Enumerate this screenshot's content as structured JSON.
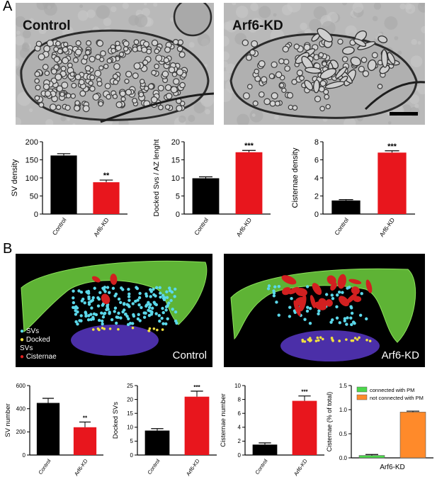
{
  "panel_letters": {
    "a": "A",
    "b": "B"
  },
  "micrographs": [
    {
      "label": "Control"
    },
    {
      "label": "Arf6-KD"
    }
  ],
  "reconstructions": [
    {
      "label": "Control"
    },
    {
      "label": "Arf6-KD"
    }
  ],
  "recon_legend": [
    {
      "label": "SVs",
      "color": "#5bd8ea"
    },
    {
      "label": "Docked SVs",
      "color": "#f0e040"
    },
    {
      "label": "Cisternae",
      "color": "#e02020"
    }
  ],
  "colors": {
    "control_bar": "#000000",
    "arf6kd_bar": "#e8161d",
    "connected_pm": "#4cd84c",
    "not_connected_pm": "#ff8a2a",
    "membrane_green": "#66c23a",
    "active_zone_purple": "#4b2fa8"
  },
  "chart_data": [
    {
      "type": "bar",
      "categories": [
        "Control",
        "Arf6-KD"
      ],
      "values": [
        162,
        88
      ],
      "errors": [
        5,
        6
      ],
      "ylabel": "SV density",
      "ylim": [
        0,
        200
      ],
      "yticks": [
        0,
        50,
        100,
        150,
        200
      ],
      "significance": [
        "",
        "**"
      ]
    },
    {
      "type": "bar",
      "categories": [
        "Control",
        "Arf6-KD"
      ],
      "values": [
        9.9,
        17.1
      ],
      "errors": [
        0.4,
        0.5
      ],
      "ylabel": "Docked Svs / AZ lenght",
      "ylim": [
        0,
        20
      ],
      "yticks": [
        0,
        5,
        10,
        15,
        20
      ],
      "significance": [
        "",
        "***"
      ]
    },
    {
      "type": "bar",
      "categories": [
        "Control",
        "Arf6-KD"
      ],
      "values": [
        1.5,
        6.8
      ],
      "errors": [
        0.1,
        0.2
      ],
      "ylabel": "Cisternae density",
      "ylim": [
        0,
        8
      ],
      "yticks": [
        0,
        2,
        4,
        6,
        8
      ],
      "significance": [
        "",
        "***"
      ]
    },
    {
      "type": "bar",
      "categories": [
        "Control",
        "Arf6-KD"
      ],
      "values": [
        450,
        240
      ],
      "errors": [
        40,
        45
      ],
      "ylabel": "SV number",
      "ylim": [
        0,
        600
      ],
      "yticks": [
        0,
        200,
        400,
        600
      ],
      "significance": [
        "",
        "**"
      ]
    },
    {
      "type": "bar",
      "categories": [
        "Control",
        "Arf6-KD"
      ],
      "values": [
        8.8,
        21
      ],
      "errors": [
        0.7,
        2
      ],
      "ylabel": "Docked SVs",
      "ylim": [
        0,
        25
      ],
      "yticks": [
        0,
        5,
        10,
        15,
        20,
        25
      ],
      "significance": [
        "",
        "***"
      ]
    },
    {
      "type": "bar",
      "categories": [
        "Control",
        "Arf6-KD"
      ],
      "values": [
        1.5,
        7.8
      ],
      "errors": [
        0.25,
        0.7
      ],
      "ylabel": "Cisternae number",
      "ylim": [
        0,
        10
      ],
      "yticks": [
        0,
        2,
        4,
        6,
        8,
        10
      ],
      "significance": [
        "",
        "***"
      ]
    },
    {
      "type": "bar",
      "categories": [
        "connected with PM",
        "not connected with PM"
      ],
      "values": [
        0.05,
        0.95
      ],
      "errors": [
        0.02,
        0.02
      ],
      "ylabel": "Cisternae (% of total)",
      "xlabel": "Arf6-KD",
      "ylim": [
        0,
        1.5
      ],
      "yticks": [
        "0.0",
        "0.5",
        "1.0",
        "1.5"
      ],
      "legend": [
        "connected with PM",
        "not connected with PM"
      ],
      "legend_position": "top"
    }
  ]
}
